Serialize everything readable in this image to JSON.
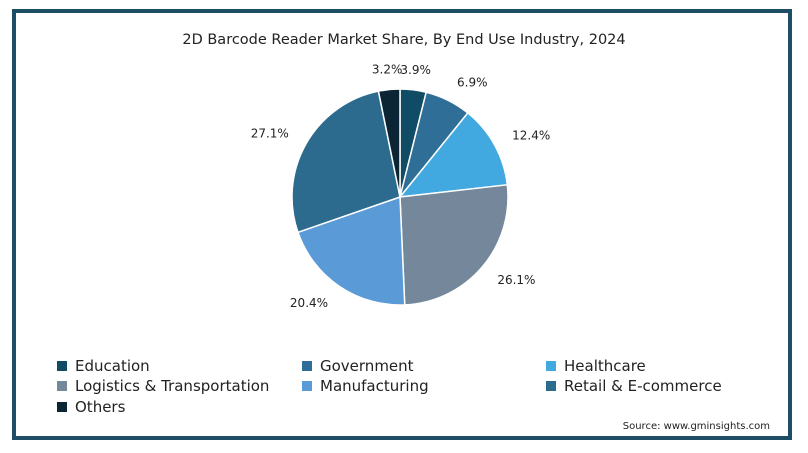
{
  "chart_data": {
    "type": "pie",
    "title": "2D Barcode Reader Market Share, By End Use Industry, 2024",
    "slices": [
      {
        "name": "Education",
        "value": 3.9,
        "label": "3.9%",
        "color": "#114c66"
      },
      {
        "name": "Government",
        "value": 6.9,
        "label": "6.9%",
        "color": "#2f6f97"
      },
      {
        "name": "Healthcare",
        "value": 12.4,
        "label": "12.4%",
        "color": "#41a8e0"
      },
      {
        "name": "Logistics & Transportation",
        "value": 26.1,
        "label": "26.1%",
        "color": "#75879a"
      },
      {
        "name": "Manufacturing",
        "value": 20.4,
        "label": "20.4%",
        "color": "#5a9bd7"
      },
      {
        "name": "Retail & E-commerce",
        "value": 27.1,
        "label": "27.1%",
        "color": "#2c6a8e"
      },
      {
        "name": "Others",
        "value": 3.2,
        "label": "3.2%",
        "color": "#0c2535"
      }
    ],
    "legend_position": "bottom"
  },
  "source": "Source: www.gminsights.com"
}
